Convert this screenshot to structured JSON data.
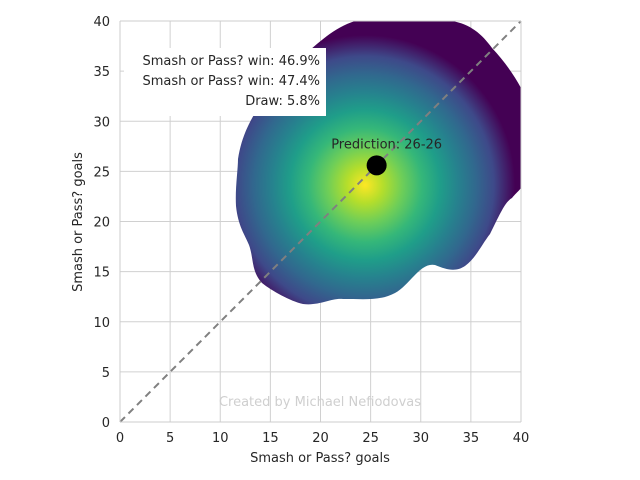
{
  "chart_data": {
    "type": "heatmap",
    "title": "",
    "xlabel": "Smash or Pass? goals",
    "ylabel": "Smash or Pass? goals",
    "xlim": [
      0,
      40
    ],
    "ylim": [
      0,
      40
    ],
    "x_ticks": [
      "0",
      "5",
      "10",
      "15",
      "20",
      "25",
      "30",
      "35",
      "40"
    ],
    "y_ticks": [
      "0",
      "5",
      "10",
      "15",
      "20",
      "25",
      "30",
      "35",
      "40"
    ],
    "grid": true,
    "colormap": "viridis",
    "density_center": [
      24.5,
      23.5
    ],
    "prediction_point": {
      "x": 25.6,
      "y": 25.6,
      "color": "#000000"
    },
    "prediction_label": "Prediction: 26-26",
    "diagonal_reference": {
      "from": [
        0,
        0
      ],
      "to": [
        40,
        40
      ],
      "style": "dashed",
      "color": "#808080"
    },
    "outcome_labels": [
      "Smash or Pass? win: 46.9%",
      "Smash or Pass? win: 47.4%",
      "Draw: 5.8%"
    ],
    "outcome_probabilities": [
      46.9,
      47.4,
      5.8
    ],
    "watermark": "Created by Michael Nefiodovas"
  }
}
